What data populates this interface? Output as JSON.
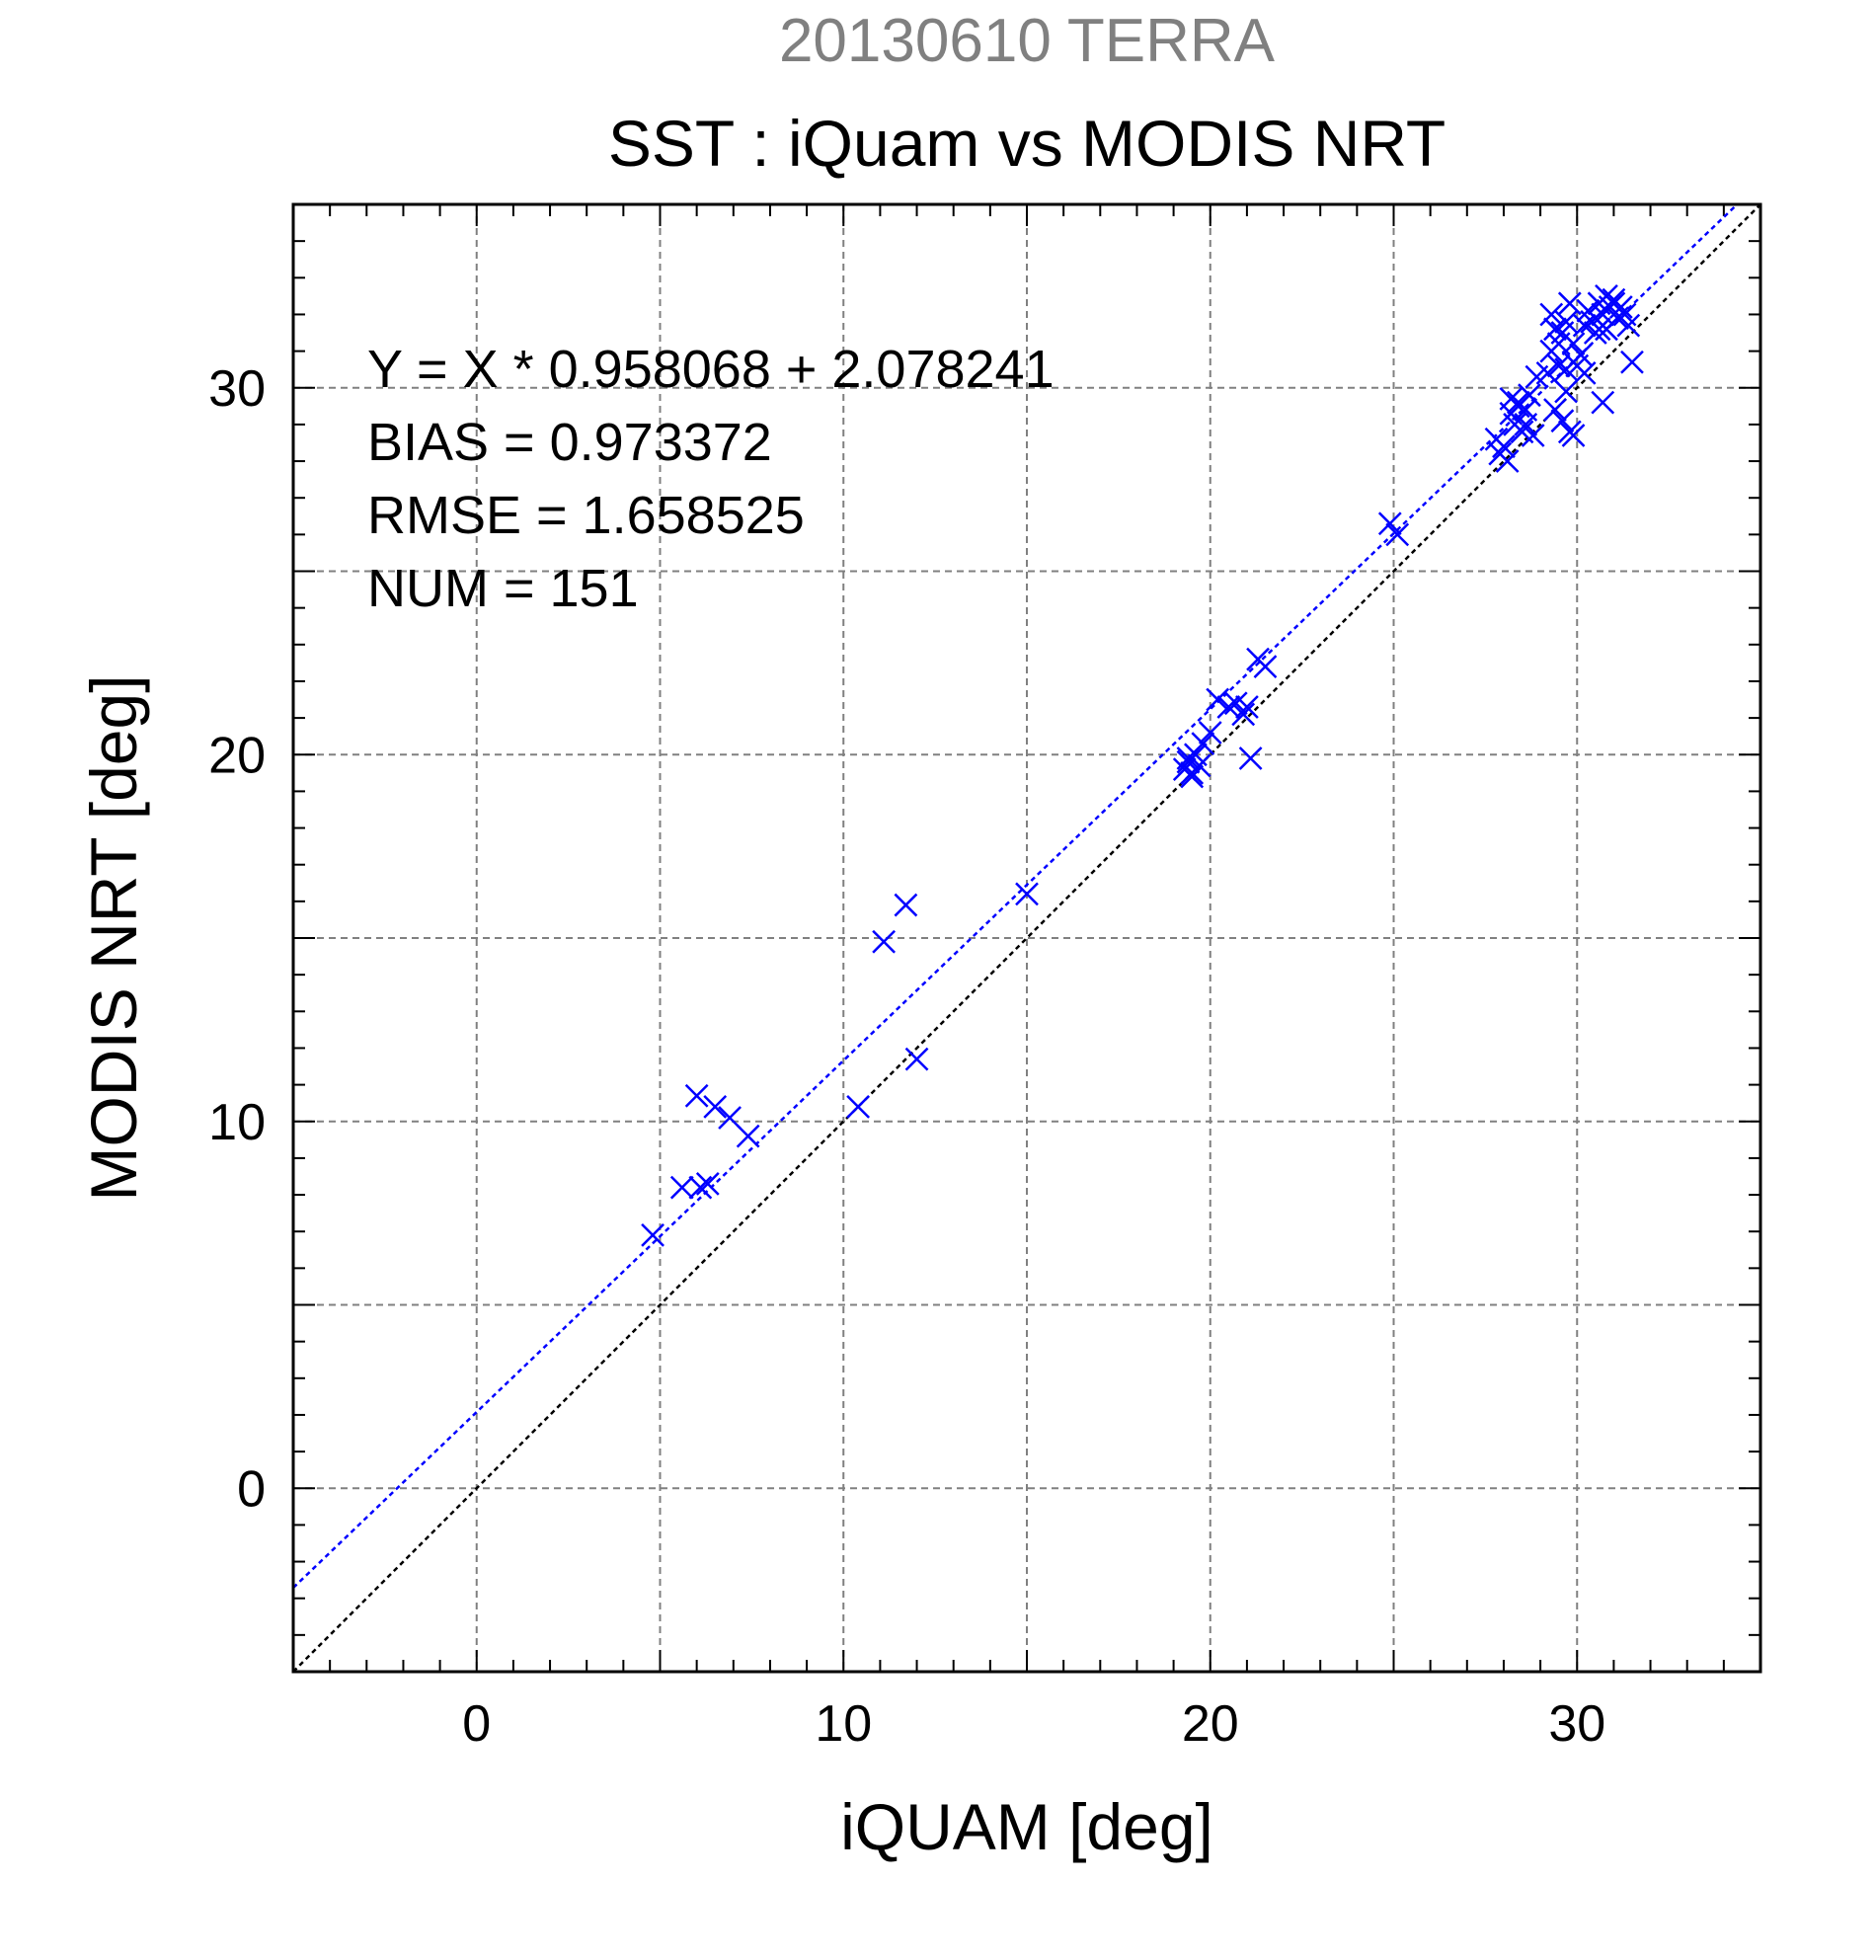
{
  "chart_data": {
    "type": "scatter",
    "title_top": "20130610 TERRA",
    "title": "SST : iQuam vs MODIS NRT",
    "xlabel": "iQUAM [deg]",
    "ylabel": "MODIS NRT [deg]",
    "xlim": [
      -5,
      35
    ],
    "ylim": [
      -5,
      35
    ],
    "xticks": [
      0,
      10,
      20,
      30
    ],
    "yticks": [
      0,
      10,
      20,
      30
    ],
    "xtick_labels": [
      "0",
      "10",
      "20",
      "30"
    ],
    "ytick_labels": [
      "0",
      "10",
      "20",
      "30"
    ],
    "grid": true,
    "grid_step": 5,
    "minor_tick_step": 1,
    "stats_lines": [
      "Y = X * 0.958068 + 2.078241",
      "BIAS = 0.973372",
      "RMSE = 1.658525",
      "NUM = 151"
    ],
    "fit_line": {
      "slope": 0.958068,
      "intercept": 2.078241,
      "color": "#0000ff"
    },
    "identity_line": {
      "slope": 1,
      "intercept": 0,
      "color": "#000000"
    },
    "series": [
      {
        "marker": "x",
        "color": "#0000ff",
        "x": [
          4.8,
          5.6,
          6.0,
          6.1,
          6.3,
          6.5,
          6.9,
          7.4,
          10.4,
          11.1,
          11.7,
          12.0,
          15.0,
          19.3,
          19.4,
          19.5,
          19.6,
          19.7,
          19.5,
          19.4,
          19.8,
          20.0,
          20.2,
          20.5,
          20.7,
          20.9,
          21.0,
          21.1,
          21.3,
          21.5,
          24.9,
          25.1,
          27.8,
          27.9,
          28.0,
          28.1,
          28.2,
          28.3,
          28.4,
          28.5,
          28.6,
          28.7,
          28.8,
          28.2,
          28.4,
          28.6,
          28.9,
          29.2,
          29.3,
          29.4,
          29.5,
          29.6,
          29.7,
          29.8,
          29.9,
          29.4,
          29.6,
          29.8,
          29.5,
          29.7,
          29.9,
          29.3,
          30.0,
          30.1,
          30.2,
          30.3,
          30.4,
          30.5,
          30.6,
          30.7,
          30.8,
          30.9,
          31.0,
          31.1,
          31.2,
          31.3,
          31.4,
          31.5,
          30.2,
          30.5,
          30.8,
          31.0,
          30.6,
          29.9,
          29.7,
          30.7
        ],
        "y": [
          6.9,
          8.2,
          10.7,
          8.2,
          8.3,
          10.4,
          10.1,
          9.6,
          10.4,
          14.9,
          15.9,
          11.7,
          16.2,
          19.6,
          19.8,
          19.5,
          20.0,
          19.7,
          19.4,
          19.9,
          20.3,
          20.6,
          21.5,
          21.3,
          21.4,
          21.1,
          21.3,
          19.9,
          22.6,
          22.4,
          26.3,
          26.0,
          28.6,
          28.2,
          28.4,
          28.0,
          29.3,
          29.0,
          29.6,
          28.8,
          29.4,
          29.8,
          28.7,
          29.7,
          29.5,
          29.0,
          30.3,
          30.4,
          31.0,
          31.6,
          31.2,
          31.5,
          31.8,
          32.3,
          31.2,
          29.4,
          29.1,
          28.8,
          30.6,
          30.5,
          30.7,
          32.0,
          30.6,
          30.9,
          31.7,
          32.1,
          31.8,
          31.9,
          32.3,
          32.0,
          31.6,
          32.2,
          32.4,
          31.9,
          32.2,
          32.0,
          31.7,
          30.7,
          30.4,
          31.5,
          32.5,
          32.3,
          31.6,
          28.7,
          29.9,
          29.6
        ]
      }
    ]
  }
}
